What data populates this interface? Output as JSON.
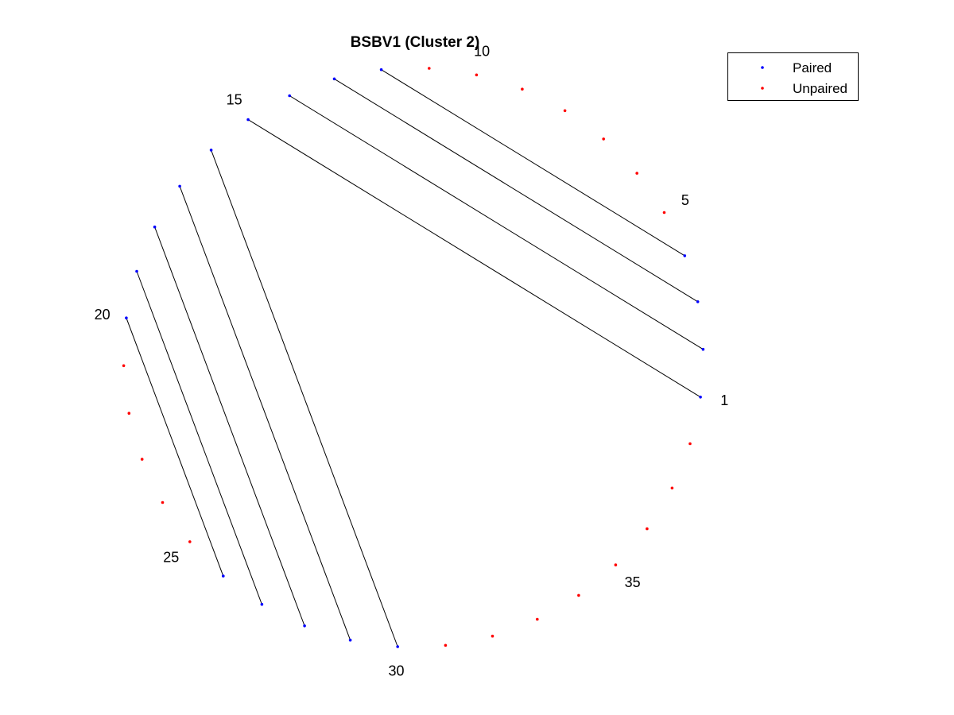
{
  "chart_data": {
    "type": "scatter",
    "subtype": "circular-arc-diagram",
    "title": "BSBV1 (Cluster 2)",
    "node_count": 38,
    "node_labels": [
      "1",
      "5",
      "10",
      "15",
      "20",
      "25",
      "30",
      "35"
    ],
    "label_nodes": [
      1,
      5,
      10,
      15,
      20,
      25,
      30,
      35
    ],
    "paired_nodes": [
      1,
      2,
      3,
      4,
      12,
      13,
      14,
      15,
      16,
      17,
      18,
      19,
      20,
      26,
      27,
      28,
      29,
      30
    ],
    "pairs": [
      [
        1,
        15
      ],
      [
        2,
        14
      ],
      [
        3,
        13
      ],
      [
        4,
        12
      ],
      [
        16,
        30
      ],
      [
        17,
        29
      ],
      [
        18,
        28
      ],
      [
        19,
        27
      ],
      [
        20,
        26
      ]
    ],
    "series": [
      {
        "name": "Paired",
        "color": "#0000ff",
        "marker": "dot"
      },
      {
        "name": "Unpaired",
        "color": "#ff0000",
        "marker": "dot"
      }
    ],
    "link_color": "#000000",
    "legend_position": "top-right",
    "grid": false,
    "axes_visible": false
  }
}
